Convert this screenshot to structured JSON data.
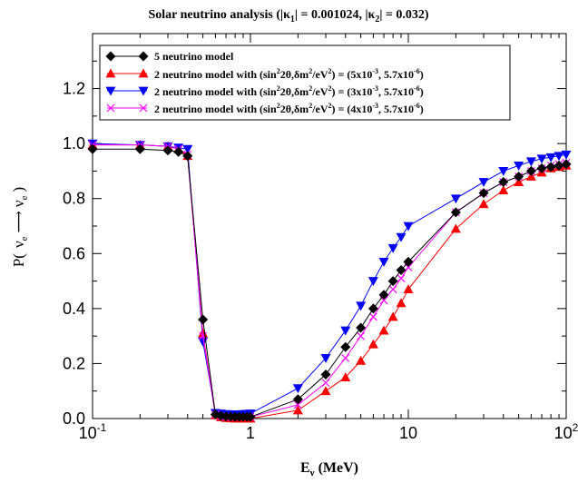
{
  "chart_data": {
    "type": "line",
    "title": "Solar neutrino analysis (|κ1| = 0.001024, |κ2| = 0.032)",
    "title_parts": {
      "prefix": "Solar neutrino analysis (|κ",
      "sub1": "1",
      "middle": "| = 0.001024, |κ",
      "sub2": "2",
      "suffix": "| = 0.032)"
    },
    "xlabel": "Eν (MeV)",
    "xlabel_parts": {
      "main": "E",
      "sub": "ν",
      "unit": " (MeV)"
    },
    "ylabel": "P( νe ⟶ νe )",
    "ylabel_parts": {
      "open": "P(",
      "nu": "ν",
      "sub": "e",
      "arrow": "⟶",
      "close": ")"
    },
    "x_scale": "log",
    "xlim": [
      0.1,
      100
    ],
    "ylim": [
      0.0,
      1.4
    ],
    "x_ticks": [
      {
        "value": 0.1,
        "base": "10",
        "exp": "-1"
      },
      {
        "value": 1,
        "base": "1",
        "exp": ""
      },
      {
        "value": 10,
        "base": "10",
        "exp": ""
      },
      {
        "value": 100,
        "base": "10",
        "exp": "2"
      }
    ],
    "y_ticks": [
      {
        "value": 0.0,
        "label": "0.0"
      },
      {
        "value": 0.2,
        "label": "0.2"
      },
      {
        "value": 0.4,
        "label": "0.4"
      },
      {
        "value": 0.6,
        "label": "0.6"
      },
      {
        "value": 0.8,
        "label": "0.8"
      },
      {
        "value": 1.0,
        "label": "1.0"
      },
      {
        "value": 1.2,
        "label": "1.2"
      }
    ],
    "grid": false,
    "legend_position": "top-left",
    "series": [
      {
        "name": "5 neutrino model",
        "legend_parts": {
          "text": "5 neutrino model"
        },
        "color": "#000000",
        "marker": "diamond",
        "x": [
          0.1,
          0.2,
          0.3,
          0.35,
          0.4,
          0.5,
          0.6,
          0.65,
          0.7,
          0.75,
          0.8,
          0.85,
          0.9,
          0.95,
          1.0,
          2,
          3,
          4,
          5,
          6,
          7,
          8,
          9,
          10,
          20,
          30,
          40,
          50,
          60,
          70,
          80,
          90,
          100
        ],
        "y": [
          0.98,
          0.98,
          0.975,
          0.97,
          0.955,
          0.36,
          0.015,
          0.01,
          0.008,
          0.007,
          0.006,
          0.006,
          0.006,
          0.006,
          0.006,
          0.07,
          0.16,
          0.26,
          0.33,
          0.4,
          0.45,
          0.5,
          0.54,
          0.57,
          0.75,
          0.82,
          0.86,
          0.88,
          0.9,
          0.91,
          0.915,
          0.92,
          0.925
        ]
      },
      {
        "name": "2 neutrino model with (sin²2θ,δm²/eV²) = (5x10⁻³, 5.7x10⁻⁶)",
        "legend_parts": {
          "text": "2 neutrino model with (sin",
          "s1": "2",
          "t2": "2θ,δm",
          "s2": "2",
          "t3": "/eV",
          "s3": "2",
          "t4": ") = (5x10",
          "s4": "-3",
          "t5": ", 5.7x10",
          "s5": "-6",
          "t6": ")"
        },
        "color": "#ff0000",
        "marker": "triangle-up",
        "x": [
          0.1,
          0.2,
          0.3,
          0.35,
          0.4,
          0.5,
          0.6,
          0.65,
          0.7,
          0.75,
          0.8,
          0.85,
          0.9,
          0.95,
          1.0,
          2,
          3,
          4,
          5,
          6,
          7,
          8,
          9,
          10,
          20,
          30,
          40,
          50,
          60,
          70,
          80,
          90,
          100
        ],
        "y": [
          0.995,
          0.995,
          0.99,
          0.98,
          0.955,
          0.31,
          0.012,
          0.005,
          0.002,
          0.001,
          0.0,
          0.0,
          0.0,
          0.0,
          0.0,
          0.03,
          0.1,
          0.15,
          0.21,
          0.27,
          0.32,
          0.37,
          0.42,
          0.47,
          0.69,
          0.78,
          0.83,
          0.86,
          0.88,
          0.895,
          0.91,
          0.915,
          0.92
        ]
      },
      {
        "name": "2 neutrino model with (sin²2θ,δm²/eV²) = (3x10⁻³, 5.7x10⁻⁶)",
        "legend_parts": {
          "text": "2 neutrino model with (sin",
          "s1": "2",
          "t2": "2θ,δm",
          "s2": "2",
          "t3": "/eV",
          "s3": "2",
          "t4": ") = (3x10",
          "s4": "-3",
          "t5": ", 5.7x10",
          "s5": "-6",
          "t6": ")"
        },
        "color": "#0000ff",
        "marker": "triangle-down",
        "x": [
          0.1,
          0.2,
          0.3,
          0.35,
          0.4,
          0.5,
          0.6,
          0.65,
          0.7,
          0.75,
          0.8,
          0.85,
          0.9,
          0.95,
          1.0,
          2,
          3,
          4,
          5,
          6,
          7,
          8,
          9,
          10,
          20,
          30,
          40,
          50,
          60,
          70,
          80,
          90,
          100
        ],
        "y": [
          1.0,
          0.995,
          0.99,
          0.985,
          0.98,
          0.28,
          0.02,
          0.018,
          0.016,
          0.015,
          0.015,
          0.015,
          0.016,
          0.017,
          0.018,
          0.11,
          0.22,
          0.32,
          0.41,
          0.5,
          0.57,
          0.62,
          0.66,
          0.7,
          0.8,
          0.86,
          0.9,
          0.92,
          0.935,
          0.945,
          0.95,
          0.955,
          0.96
        ]
      },
      {
        "name": "2 neutrino model with (sin²2θ,δm²/eV²) = (4x10⁻³, 5.7x10⁻⁶)",
        "legend_parts": {
          "text": "2 neutrino model with (sin",
          "s1": "2",
          "t2": "2θ,δm",
          "s2": "2",
          "t3": "/eV",
          "s3": "2",
          "t4": ") = (4x10",
          "s4": "-3",
          "t5": ", 5.7x10",
          "s5": "-6",
          "t6": ")"
        },
        "color": "#ff00ff",
        "marker": "cross",
        "x": [
          0.1,
          0.2,
          0.3,
          0.35,
          0.4,
          0.5,
          0.6,
          0.65,
          0.7,
          0.75,
          0.8,
          0.85,
          0.9,
          0.95,
          1.0,
          2,
          3,
          4,
          5,
          6,
          7,
          8,
          9,
          10,
          20,
          30,
          40,
          50,
          60,
          70,
          80,
          90,
          100
        ],
        "y": [
          0.995,
          0.995,
          0.99,
          0.98,
          0.96,
          0.3,
          0.015,
          0.008,
          0.006,
          0.005,
          0.005,
          0.005,
          0.005,
          0.005,
          0.006,
          0.05,
          0.13,
          0.22,
          0.3,
          0.37,
          0.43,
          0.47,
          0.51,
          0.55,
          0.75,
          0.82,
          0.86,
          0.88,
          0.9,
          0.91,
          0.92,
          0.925,
          0.93
        ]
      }
    ]
  }
}
